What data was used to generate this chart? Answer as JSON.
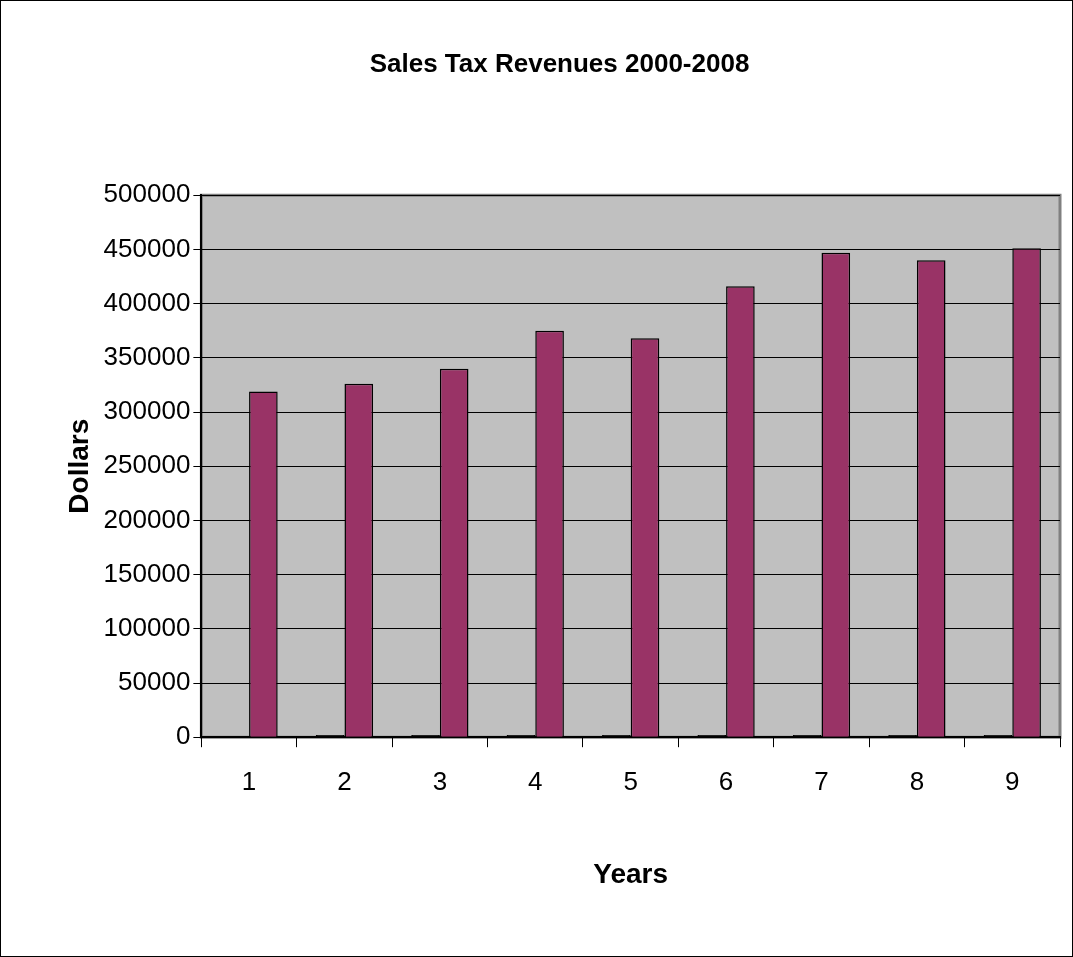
{
  "chart_data": {
    "type": "bar",
    "title": "Sales Tax Revenues 2000-2008",
    "xlabel": "Years",
    "ylabel": "Dollars",
    "categories": [
      "1",
      "2",
      "3",
      "4",
      "5",
      "6",
      "7",
      "8",
      "9"
    ],
    "series": [
      {
        "color": "#000000",
        "values": [
          null,
          2000,
          2000,
          2000,
          2000,
          2000,
          2000,
          2000,
          2000
        ]
      },
      {
        "color": "#993366",
        "values": [
          319000,
          326000,
          340000,
          375000,
          368000,
          416000,
          447000,
          440000,
          451000
        ]
      }
    ],
    "ylim": [
      0,
      500000
    ],
    "yticks": [
      0,
      50000,
      100000,
      150000,
      200000,
      250000,
      300000,
      350000,
      400000,
      450000,
      500000
    ],
    "grid": "y",
    "legend": false
  }
}
